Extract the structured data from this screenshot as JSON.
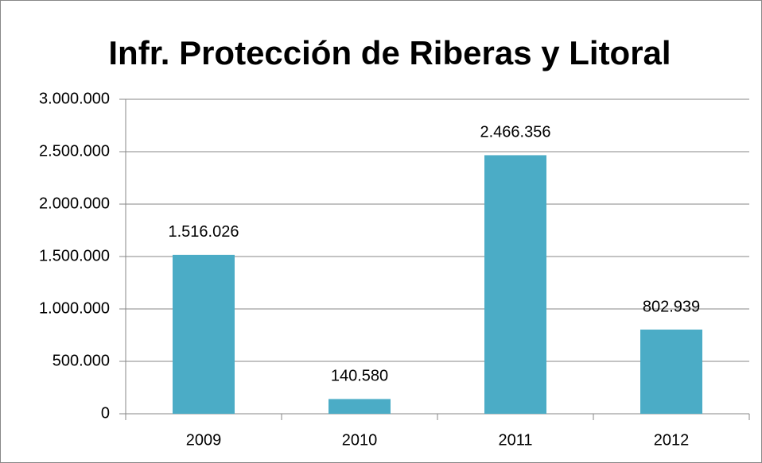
{
  "chart_data": {
    "type": "bar",
    "title": "Infr. Protección de Riberas y Litoral",
    "categories": [
      "2009",
      "2010",
      "2011",
      "2012"
    ],
    "values": [
      1516026,
      140580,
      2466356,
      802939
    ],
    "value_labels": [
      "1.516.026",
      "140.580",
      "2.466.356",
      "802.939"
    ],
    "color": "#4bacc6",
    "ylim": [
      0,
      3000000
    ],
    "yticks": [
      0,
      {
        "value": 500000,
        "label": "500.000"
      },
      {
        "value": 1000000,
        "label": "1.000.000"
      },
      {
        "value": 1500000,
        "label": "1.500.000"
      },
      {
        "value": 2000000,
        "label": "2.000.000"
      },
      {
        "value": 2500000,
        "label": "2.500.000"
      },
      {
        "value": 3000000,
        "label": "3.000.000"
      }
    ],
    "grid": true
  }
}
